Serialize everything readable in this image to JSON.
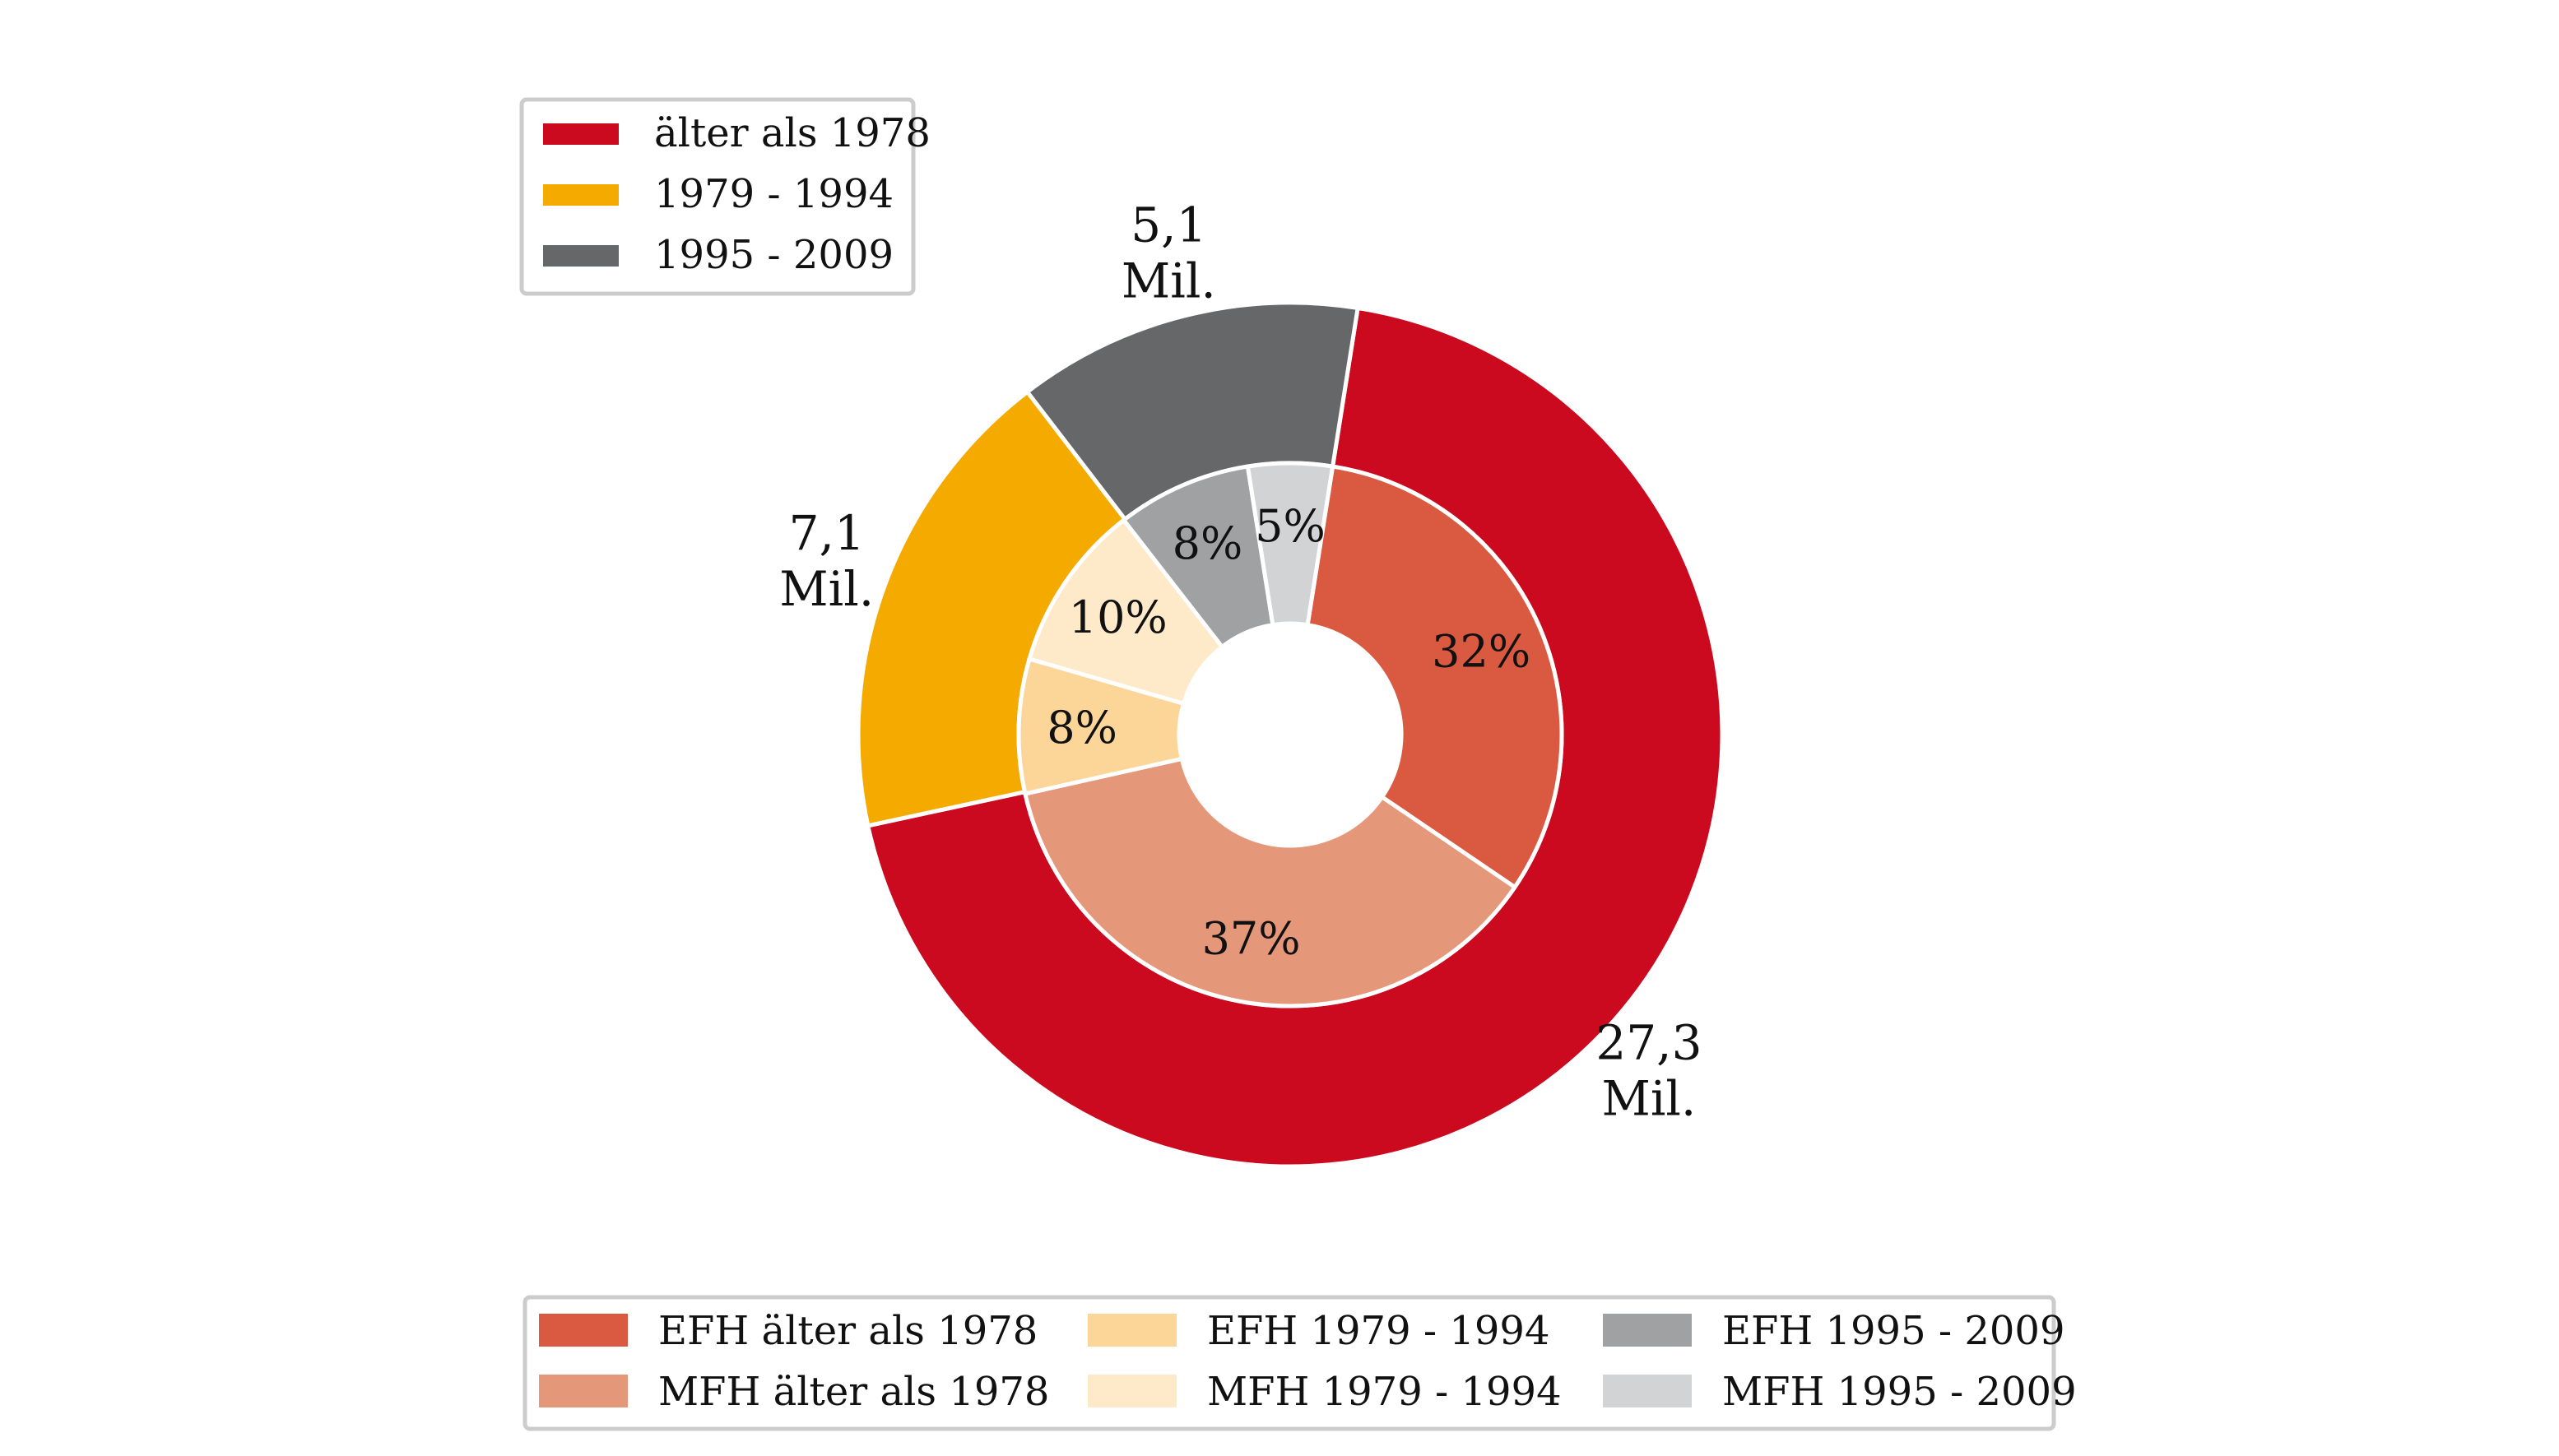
{
  "chart_data": {
    "type": "donut",
    "outer_ring": {
      "categories": [
        "älter als 1978",
        "1979 - 1994",
        "1995 - 2009"
      ],
      "values": [
        27.3,
        7.1,
        5.1
      ],
      "labels": [
        [
          "27,3",
          "Mil."
        ],
        [
          "7,1",
          "Mil."
        ],
        [
          "5,1",
          "Mil."
        ]
      ],
      "colors": [
        "#cc0a1f",
        "#f5aa00",
        "#666769"
      ]
    },
    "inner_ring": {
      "categories": [
        "EFH älter als 1978",
        "MFH älter als 1978",
        "EFH 1979 - 1994",
        "MFH 1979 - 1994",
        "EFH 1995 - 2009",
        "MFH 1995 - 2009"
      ],
      "values": [
        32,
        37,
        8,
        10,
        8,
        5
      ],
      "labels": [
        "32%",
        "37%",
        "8%",
        "10%",
        "8%",
        "5%"
      ],
      "colors": [
        "#d95a40",
        "#e5977a",
        "#fcd699",
        "#fee9c9",
        "#a0a1a3",
        "#d2d3d5"
      ]
    },
    "legend_top": {
      "placement": "top-left",
      "entries": [
        "älter als 1978",
        "1979 - 1994",
        "1995 - 2009"
      ]
    },
    "legend_bottom": {
      "placement": "bottom",
      "entries": [
        "EFH älter als 1978",
        "MFH älter als 1978",
        "EFH 1979 - 1994",
        "MFH 1979 - 1994",
        "EFH 1995 - 2009",
        "MFH 1995 - 2009"
      ]
    }
  }
}
